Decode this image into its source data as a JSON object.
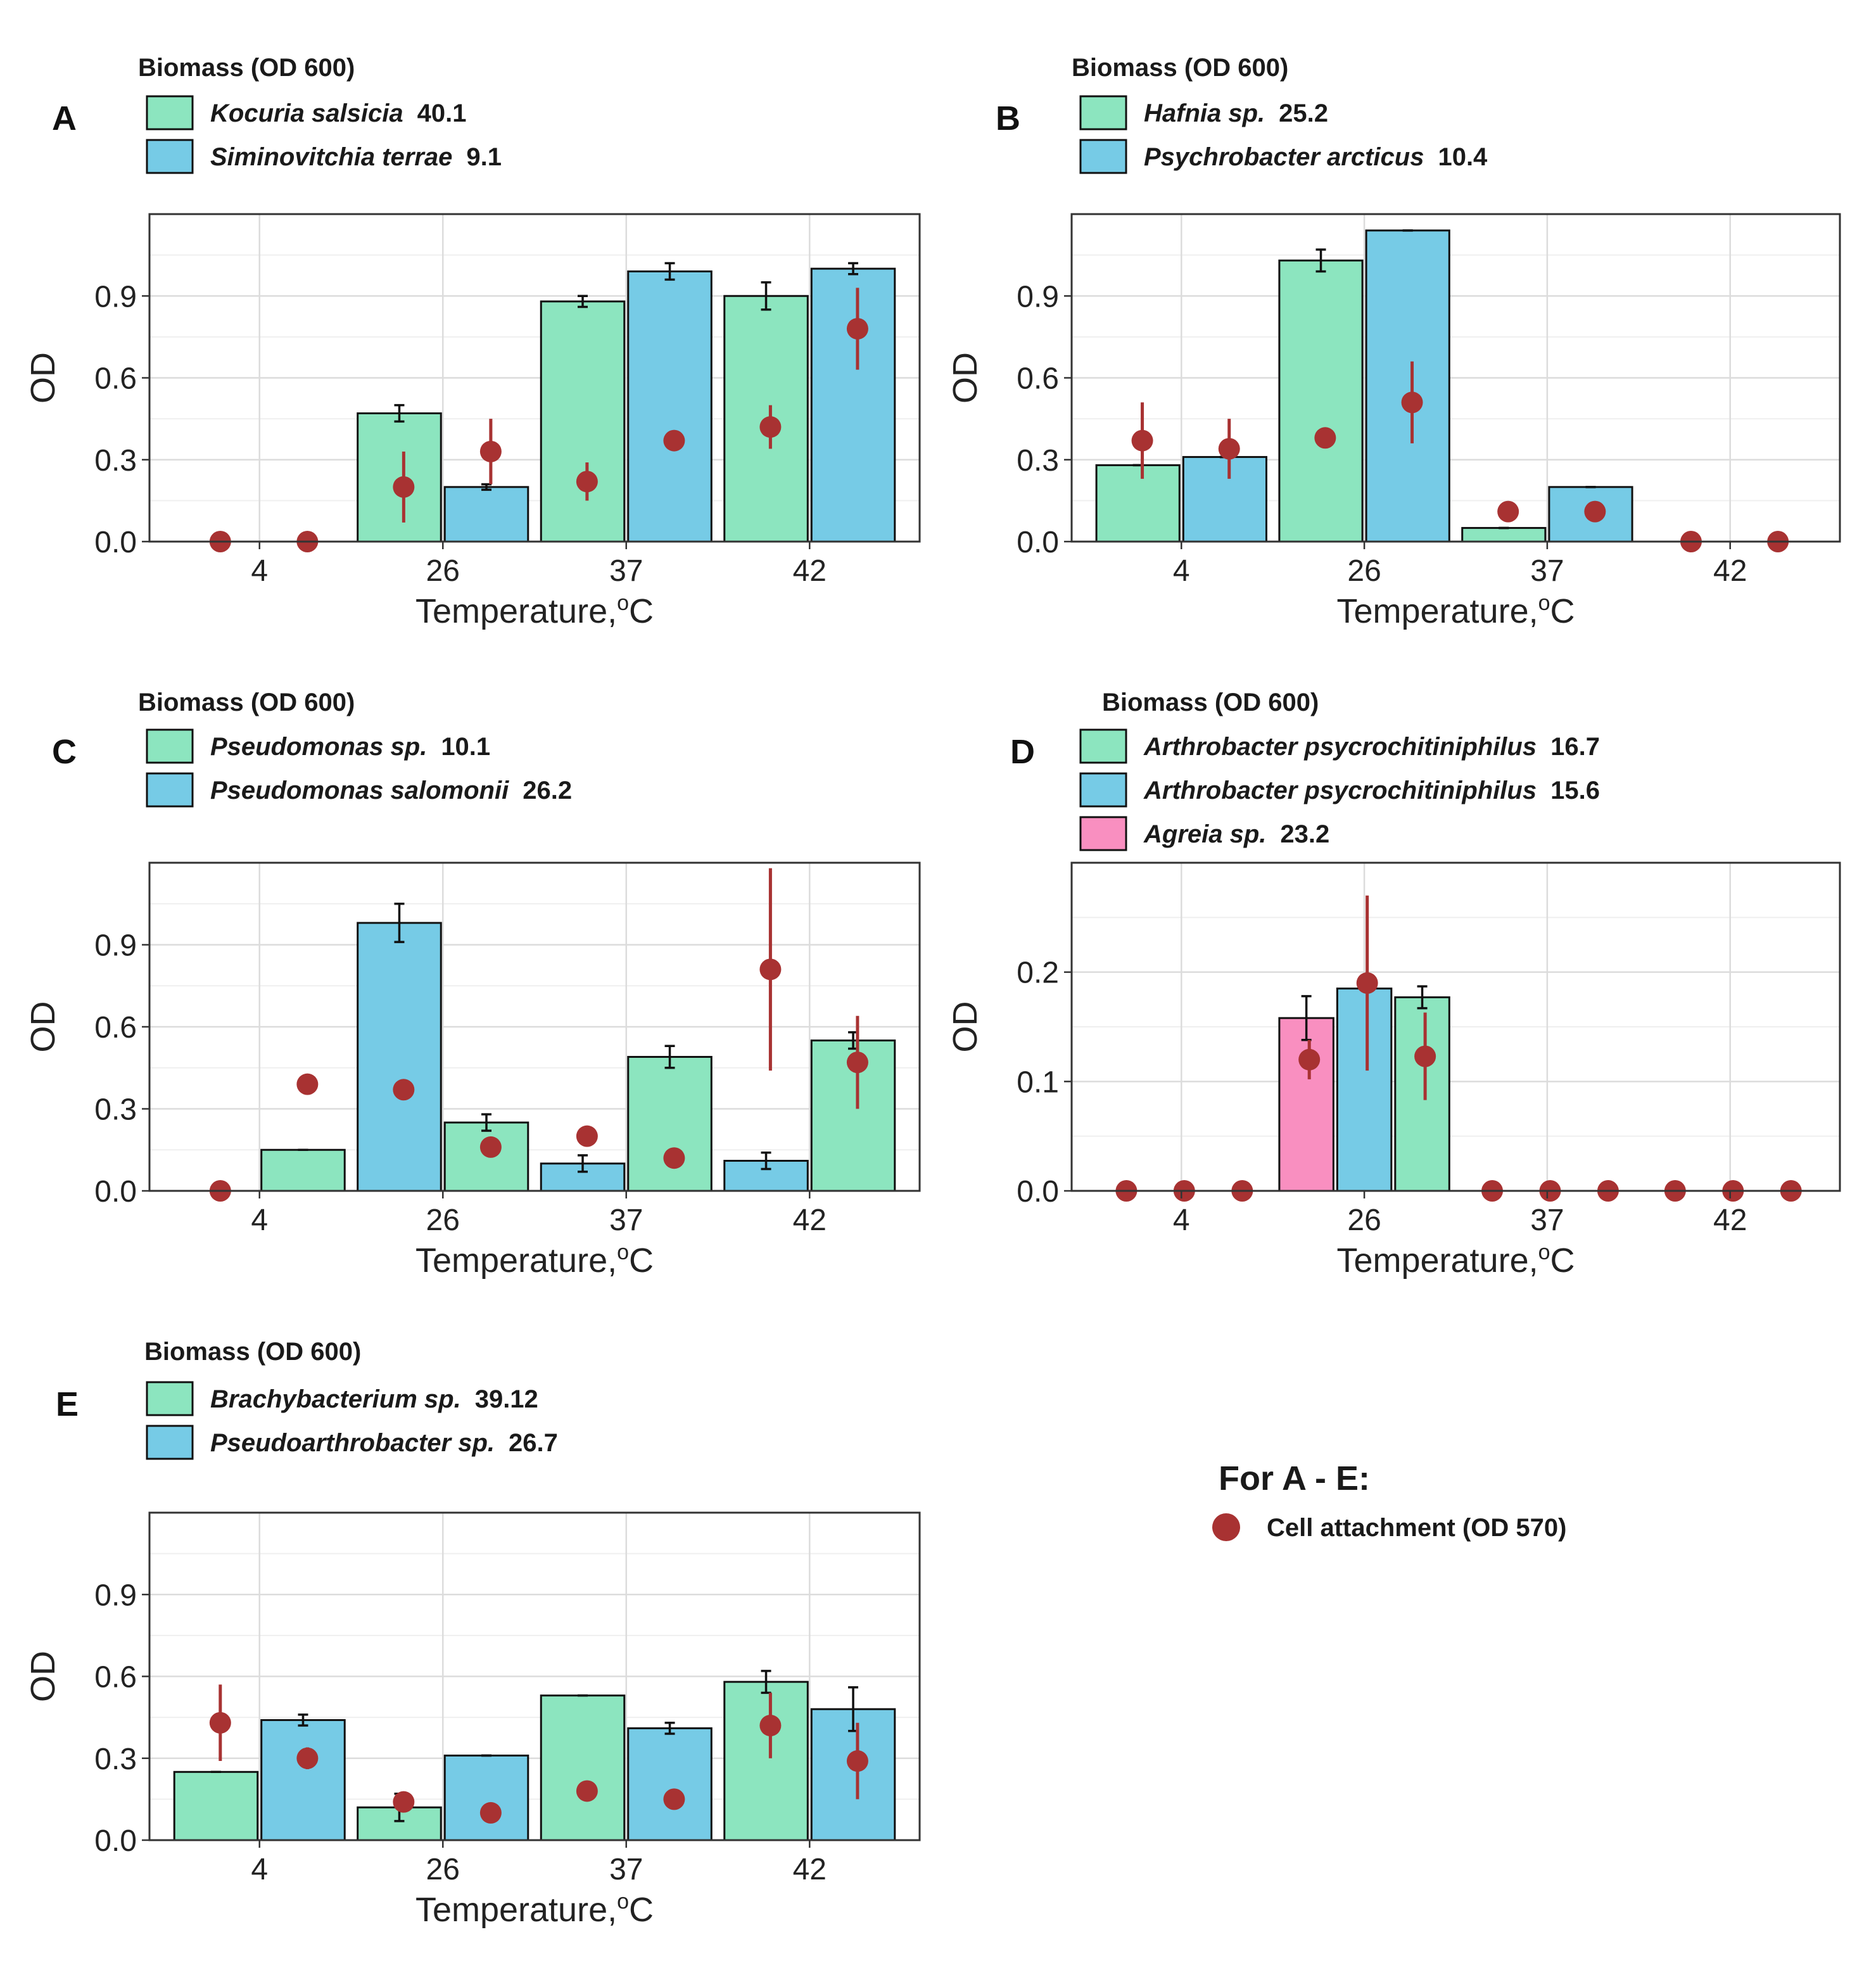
{
  "figure": {
    "legend_title": "Biomass (OD 600)",
    "x_axis_title": "Temperature,",
    "x_axis_unit_sup": "o",
    "x_axis_unit": "C",
    "y_axis_title": "OD",
    "global_legend_title": "For A  - E:",
    "global_legend_label": "Cell attachment (OD 570)"
  },
  "colors": {
    "green": "#8ce5bf",
    "blue": "#76cbe6",
    "pink": "#f98fc0",
    "point": "#a83232",
    "grid_major": "#dcdcdc",
    "grid_minor": "#efefef",
    "text": "#222222"
  },
  "chart_data": [
    {
      "panel": "A",
      "type": "bar",
      "categories": [
        "4",
        "26",
        "37",
        "42"
      ],
      "title": "",
      "xlabel": "Temperature,°C",
      "ylabel": "OD",
      "ylim": [
        0,
        1.2
      ],
      "yticks": [
        "0.0",
        "0.3",
        "0.6",
        "0.9"
      ],
      "ytick_values": [
        0,
        0.3,
        0.6,
        0.9
      ],
      "legend": [
        {
          "name": "Kocuria salsicia",
          "value": "40.1",
          "color": "green"
        },
        {
          "name": "Siminovitchia terrae",
          "value": "9.1",
          "color": "blue"
        }
      ],
      "series": [
        {
          "name": "Kocuria salsicia",
          "color": "green",
          "values": [
            null,
            0.47,
            0.88,
            0.9
          ],
          "err": [
            null,
            0.03,
            0.02,
            0.05
          ],
          "points": [
            0.0,
            0.2,
            0.22,
            0.42
          ],
          "point_err": [
            0.0,
            0.13,
            0.07,
            0.08
          ]
        },
        {
          "name": "Siminovitchia terrae",
          "color": "blue",
          "values": [
            null,
            0.2,
            0.99,
            1.0
          ],
          "err": [
            null,
            0.01,
            0.03,
            0.02
          ],
          "points": [
            0.0,
            0.33,
            0.37,
            0.78
          ],
          "point_err": [
            0.0,
            0.12,
            0.03,
            0.15
          ]
        }
      ]
    },
    {
      "panel": "B",
      "type": "bar",
      "categories": [
        "4",
        "26",
        "37",
        "42"
      ],
      "title": "",
      "xlabel": "Temperature,°C",
      "ylabel": "OD",
      "ylim": [
        0,
        1.2
      ],
      "yticks": [
        "0.0",
        "0.3",
        "0.6",
        "0.9"
      ],
      "ytick_values": [
        0,
        0.3,
        0.6,
        0.9
      ],
      "legend": [
        {
          "name": "Hafnia sp.",
          "value": "25.2",
          "color": "green"
        },
        {
          "name": "Psychrobacter  arcticus",
          "value": "10.4",
          "color": "blue"
        }
      ],
      "series": [
        {
          "name": "Hafnia sp.",
          "color": "green",
          "values": [
            0.28,
            1.03,
            0.05,
            null
          ],
          "err": [
            0.0,
            0.04,
            0.0,
            null
          ],
          "points": [
            0.37,
            0.38,
            0.11,
            0.0
          ],
          "point_err": [
            0.14,
            0.0,
            0.0,
            0.0
          ]
        },
        {
          "name": "Psychrobacter  arcticus",
          "color": "blue",
          "values": [
            0.31,
            1.14,
            0.2,
            null
          ],
          "err": [
            0.0,
            0.0,
            0.0,
            null
          ],
          "points": [
            0.34,
            0.51,
            0.11,
            0.0
          ],
          "point_err": [
            0.11,
            0.15,
            0.0,
            0.0
          ]
        }
      ]
    },
    {
      "panel": "C",
      "type": "bar",
      "categories": [
        "4",
        "26",
        "37",
        "42"
      ],
      "title": "",
      "xlabel": "Temperature,°C",
      "ylabel": "OD",
      "ylim": [
        0,
        1.2
      ],
      "yticks": [
        "0.0",
        "0.3",
        "0.6",
        "0.9"
      ],
      "ytick_values": [
        0,
        0.3,
        0.6,
        0.9
      ],
      "legend": [
        {
          "name": "Pseudomonas sp.",
          "value": "10.1",
          "color": "green"
        },
        {
          "name": "Pseudomonas salomonii",
          "value": "26.2",
          "color": "blue"
        }
      ],
      "series": [
        {
          "name": "Pseudomonas salomonii",
          "color": "blue",
          "values": [
            null,
            0.98,
            0.1,
            0.11
          ],
          "err": [
            null,
            0.07,
            0.03,
            0.03
          ],
          "points": [
            0.0,
            0.37,
            0.2,
            0.81
          ],
          "point_err": [
            0.0,
            0.0,
            0.0,
            0.37
          ]
        },
        {
          "name": "Pseudomonas sp.",
          "color": "green",
          "values": [
            0.15,
            0.25,
            0.49,
            0.55
          ],
          "err": [
            0.0,
            0.03,
            0.04,
            0.03
          ],
          "points": [
            0.39,
            0.16,
            0.12,
            0.47
          ],
          "point_err": [
            0.0,
            0.0,
            0.0,
            0.17
          ]
        }
      ]
    },
    {
      "panel": "D",
      "type": "bar",
      "categories": [
        "4",
        "26",
        "37",
        "42"
      ],
      "title": "",
      "xlabel": "Temperature,°C",
      "ylabel": "OD",
      "ylim": [
        0,
        0.3
      ],
      "yticks": [
        "0.0",
        "0.1",
        "0.2"
      ],
      "ytick_values": [
        0,
        0.1,
        0.2
      ],
      "legend": [
        {
          "name": "Arthrobacter psycrochitiniphilus",
          "value": "16.7",
          "color": "green"
        },
        {
          "name": "Arthrobacter psycrochitiniphilus",
          "value": "15.6",
          "color": "blue"
        },
        {
          "name": "Agreia sp.",
          "value": "23.2",
          "color": "pink"
        }
      ],
      "series": [
        {
          "name": "Agreia sp.",
          "color": "pink",
          "values": [
            null,
            0.158,
            null,
            null
          ],
          "err": [
            null,
            0.02,
            null,
            null
          ],
          "points": [
            0.0,
            0.12,
            0.0,
            0.0
          ],
          "point_err": [
            0.0,
            0.018,
            0.0,
            0.0
          ]
        },
        {
          "name": "Arthrobacter psycrochitiniphilus 15.6",
          "color": "blue",
          "values": [
            null,
            0.185,
            null,
            null
          ],
          "err": [
            null,
            0.0,
            null,
            null
          ],
          "points": [
            0.0,
            0.19,
            0.0,
            0.0
          ],
          "point_err": [
            0.0,
            0.08,
            0.0,
            0.0
          ]
        },
        {
          "name": "Arthrobacter psycrochitiniphilus 16.7",
          "color": "green",
          "values": [
            null,
            0.177,
            null,
            null
          ],
          "err": [
            null,
            0.01,
            null,
            null
          ],
          "points": [
            0.0,
            0.123,
            0.0,
            0.0
          ],
          "point_err": [
            0.0,
            0.04,
            0.0,
            0.0
          ]
        }
      ]
    },
    {
      "panel": "E",
      "type": "bar",
      "categories": [
        "4",
        "26",
        "37",
        "42"
      ],
      "title": "",
      "xlabel": "Temperature,°C",
      "ylabel": "OD",
      "ylim": [
        0,
        1.2
      ],
      "yticks": [
        "0.0",
        "0.3",
        "0.6",
        "0.9"
      ],
      "ytick_values": [
        0,
        0.3,
        0.6,
        0.9
      ],
      "legend": [
        {
          "name": "Brachybacterium sp.",
          "value": "39.12",
          "color": "green"
        },
        {
          "name": "Pseudoarthrobacter sp.",
          "value": "26.7",
          "color": "blue"
        }
      ],
      "series": [
        {
          "name": "Brachybacterium sp.",
          "color": "green",
          "values": [
            0.25,
            0.12,
            0.53,
            0.58
          ],
          "err": [
            0.0,
            0.05,
            0.0,
            0.04
          ],
          "points": [
            0.43,
            0.14,
            0.18,
            0.42
          ],
          "point_err": [
            0.14,
            0.0,
            0.0,
            0.12
          ]
        },
        {
          "name": "Pseudoarthrobacter sp.",
          "color": "blue",
          "values": [
            0.44,
            0.31,
            0.41,
            0.48
          ],
          "err": [
            0.02,
            0.0,
            0.02,
            0.08
          ],
          "points": [
            0.3,
            0.1,
            0.15,
            0.29
          ],
          "point_err": [
            0.04,
            0.0,
            0.0,
            0.14
          ]
        }
      ]
    }
  ]
}
